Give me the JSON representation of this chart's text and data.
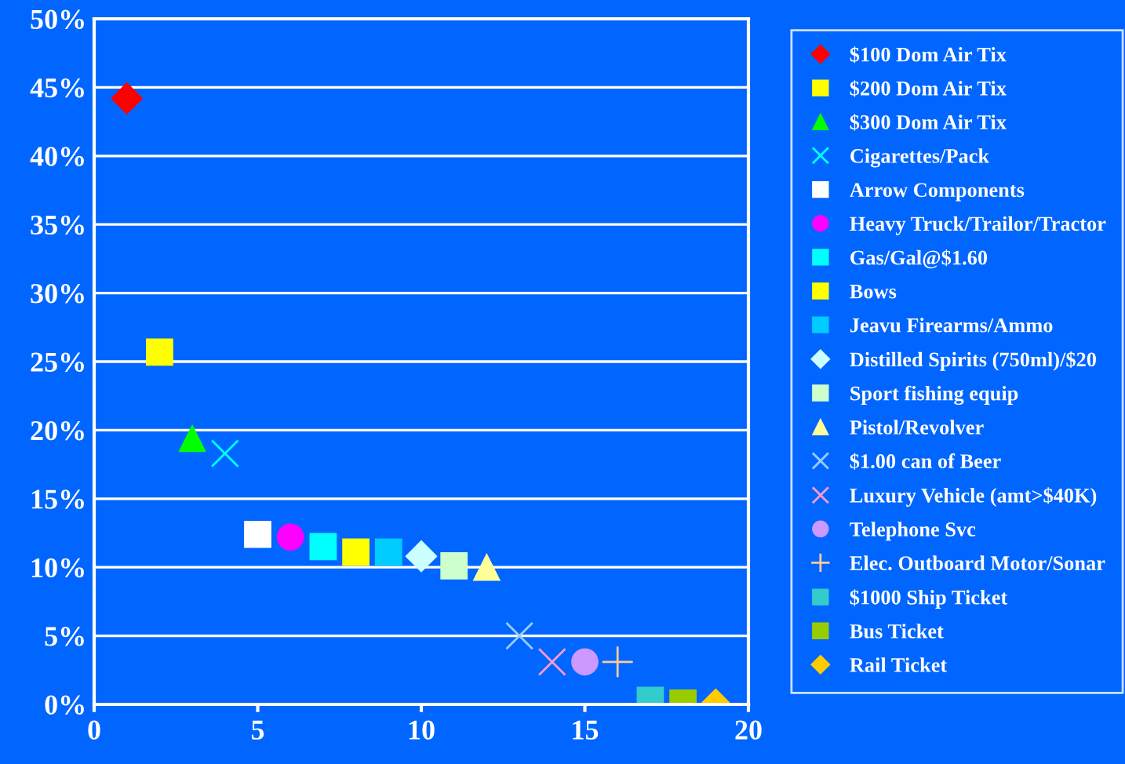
{
  "chart_data": {
    "type": "scatter",
    "xlim": [
      0,
      20
    ],
    "xticks": [
      0,
      5,
      10,
      15,
      20
    ],
    "ylim": [
      0,
      50
    ],
    "yticks": [
      {
        "value": 0,
        "label": "0%"
      },
      {
        "value": 5,
        "label": "5%"
      },
      {
        "value": 10,
        "label": "10%"
      },
      {
        "value": 15,
        "label": "15%"
      },
      {
        "value": 20,
        "label": "20%"
      },
      {
        "value": 25,
        "label": "25%"
      },
      {
        "value": 30,
        "label": "30%"
      },
      {
        "value": 35,
        "label": "35%"
      },
      {
        "value": 40,
        "label": "40%"
      },
      {
        "value": 45,
        "label": "45%"
      },
      {
        "value": 50,
        "label": "50%"
      }
    ],
    "grid": "y",
    "legend": "right",
    "series": [
      {
        "name": "$100 Dom Air Tix",
        "color": "#ff0000",
        "marker": "diamond",
        "x": [
          1
        ],
        "values": [
          44.2
        ]
      },
      {
        "name": "$200 Dom Air Tix",
        "color": "#ffff00",
        "marker": "square",
        "x": [
          2
        ],
        "values": [
          25.7
        ]
      },
      {
        "name": "$300 Dom Air Tix",
        "color": "#00ff00",
        "marker": "triangle",
        "x": [
          3
        ],
        "values": [
          19.4
        ]
      },
      {
        "name": "Cigarettes/Pack",
        "color": "#00ffff",
        "marker": "cross",
        "x": [
          4
        ],
        "values": [
          18.3
        ]
      },
      {
        "name": "Arrow Components",
        "color": "#ffffff",
        "marker": "square",
        "x": [
          5
        ],
        "values": [
          12.4
        ]
      },
      {
        "name": "Heavy Truck/Trailor/Tractor",
        "color": "#ff00ff",
        "marker": "circle",
        "x": [
          6
        ],
        "values": [
          12.2
        ]
      },
      {
        "name": "Gas/Gal@$1.60",
        "color": "#00ffff",
        "marker": "square",
        "x": [
          7
        ],
        "values": [
          11.5
        ]
      },
      {
        "name": "Bows",
        "color": "#ffff00",
        "marker": "square",
        "x": [
          8
        ],
        "values": [
          11.1
        ]
      },
      {
        "name": "Jeavu Firearms/Ammo",
        "color": "#00ccff",
        "marker": "square",
        "x": [
          9
        ],
        "values": [
          11.1
        ]
      },
      {
        "name": "Distilled Spirits (750ml)/$20",
        "color": "#ccffff",
        "marker": "diamond",
        "x": [
          10
        ],
        "values": [
          10.8
        ]
      },
      {
        "name": "Sport fishing equip",
        "color": "#ccffcc",
        "marker": "square",
        "x": [
          11
        ],
        "values": [
          10.1
        ]
      },
      {
        "name": "Pistol/Revolver",
        "color": "#ffff99",
        "marker": "triangle",
        "x": [
          12
        ],
        "values": [
          10.0
        ]
      },
      {
        "name": "$1.00 can of Beer",
        "color": "#99ccff",
        "marker": "cross",
        "x": [
          13
        ],
        "values": [
          5.0
        ]
      },
      {
        "name": "Luxury Vehicle (amt>$40K)",
        "color": "#ff99cc",
        "marker": "cross",
        "x": [
          14
        ],
        "values": [
          3.1
        ]
      },
      {
        "name": "Telephone Svc",
        "color": "#cc99ff",
        "marker": "circle",
        "x": [
          15
        ],
        "values": [
          3.1
        ]
      },
      {
        "name": "Elec. Outboard Motor/Sonar",
        "color": "#ffcc99",
        "marker": "plus",
        "x": [
          16
        ],
        "values": [
          3.1
        ]
      },
      {
        "name": "$1000 Ship Ticket",
        "color": "#33cccc",
        "marker": "square",
        "x": [
          17
        ],
        "values": [
          0.3
        ]
      },
      {
        "name": "Bus Ticket",
        "color": "#99cc00",
        "marker": "square",
        "x": [
          18
        ],
        "values": [
          0.1
        ]
      },
      {
        "name": "Rail Ticket",
        "color": "#ffcc00",
        "marker": "diamond",
        "x": [
          19
        ],
        "values": [
          0.0
        ]
      }
    ]
  }
}
